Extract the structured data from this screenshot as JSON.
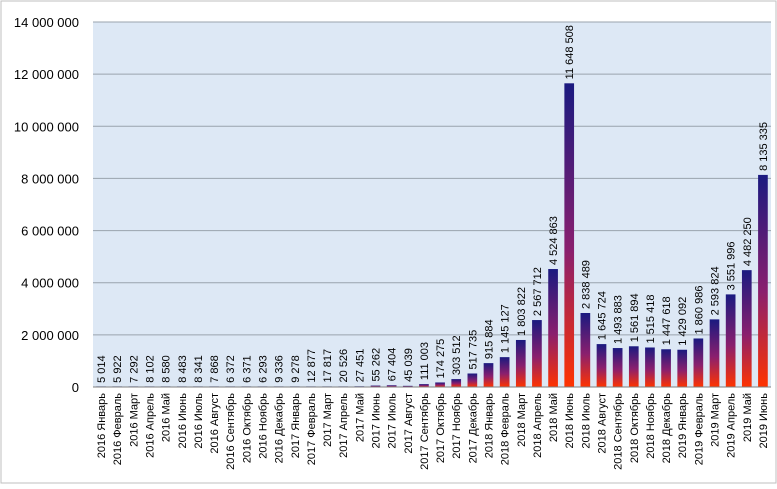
{
  "chart_data": {
    "type": "bar",
    "title": "",
    "xlabel": "",
    "ylabel": "",
    "ylim": [
      0,
      14000000
    ],
    "y_ticks": [
      0,
      2000000,
      4000000,
      6000000,
      8000000,
      10000000,
      12000000,
      14000000
    ],
    "y_tick_labels": [
      "0",
      "2 000 000",
      "4 000 000",
      "6 000 000",
      "8 000 000",
      "10 000 000",
      "12 000 000",
      "14 000 000"
    ],
    "grid": true,
    "legend": "none",
    "plot_background": "#dde8f5",
    "bar_gradient": [
      "#1a1a80",
      "#ff3300"
    ],
    "categories": [
      "2016 Январь",
      "2016 Февраль",
      "2016 Март",
      "2016 Апрель",
      "2016 Май",
      "2016 Июнь",
      "2016 Июль",
      "2016 Август",
      "2016 Сентябрь",
      "2016 Октябрь",
      "2016 Ноябрь",
      "2016 Декабрь",
      "2017 Январь",
      "2017 Февраль",
      "2017 Март",
      "2017 Апрель",
      "2017 Май",
      "2017 Июнь",
      "2017 Июль",
      "2017 Август",
      "2017 Сентябрь",
      "2017 Октябрь",
      "2017 Ноябрь",
      "2017 Декабрь",
      "2018 Январь",
      "2018 Февраль",
      "2018 Март",
      "2018 Апрель",
      "2018 Май",
      "2018 Июнь",
      "2018 Июль",
      "2018 Август",
      "2018 Сентябрь",
      "2018 Октябрь",
      "2018 Ноябрь",
      "2018 Декабрь",
      "2019 Январь",
      "2019 Февраль",
      "2019 Март",
      "2019 Апрель",
      "2019 Май",
      "2019 Июнь"
    ],
    "values": [
      5014,
      5922,
      7292,
      8102,
      8580,
      8483,
      8341,
      7868,
      6372,
      6371,
      6293,
      9336,
      9278,
      12877,
      17817,
      20526,
      27451,
      55262,
      67404,
      45039,
      111003,
      174275,
      303512,
      517735,
      915884,
      1145127,
      1803822,
      2567712,
      4524863,
      11648508,
      2838489,
      1645724,
      1493883,
      1561894,
      1515418,
      1447618,
      1429092,
      1860986,
      2593824,
      3551996,
      4482250,
      8135335
    ],
    "data_labels": [
      "5 014",
      "5 922",
      "7 292",
      "8 102",
      "8 580",
      "8 483",
      "8 341",
      "7 868",
      "6 372",
      "6 371",
      "6 293",
      "9 336",
      "9 278",
      "12 877",
      "17 817",
      "20 526",
      "27 451",
      "55 262",
      "67 404",
      "45 039",
      "111 003",
      "174 275",
      "303 512",
      "517 735",
      "915 884",
      "1 145 127",
      "1 803 822",
      "2 567 712",
      "4 524 863",
      "11 648 508",
      "2 838 489",
      "1 645 724",
      "1 493 883",
      "1 561 894",
      "1 515 418",
      "1 447 618",
      "1 429 092",
      "1 860 986",
      "2 593 824",
      "3 551 996",
      "4 482 250",
      "8 135 335"
    ]
  }
}
